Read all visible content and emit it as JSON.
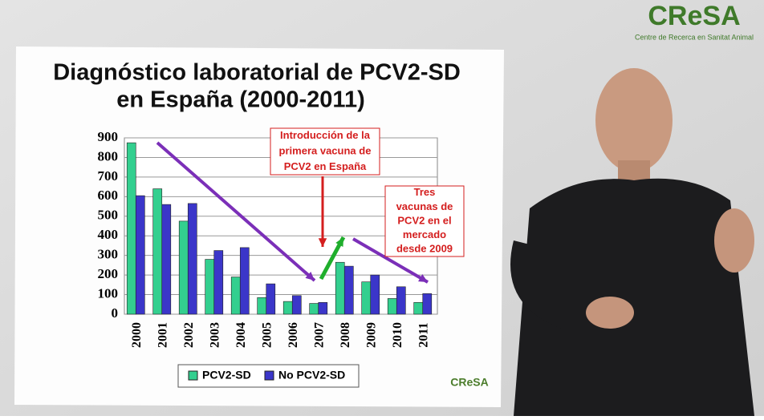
{
  "chart_data": {
    "type": "bar",
    "title": [
      "Diagnóstico laboratorial de PCV2-SD",
      "en España (2000-2011)"
    ],
    "categories": [
      "2000",
      "2001",
      "2002",
      "2003",
      "2004",
      "2005",
      "2006",
      "2007",
      "2008",
      "2009",
      "2010",
      "2011"
    ],
    "series": [
      {
        "name": "PCV2-SD",
        "color": "#33cf8f",
        "values": [
          875,
          640,
          475,
          280,
          190,
          85,
          65,
          55,
          265,
          165,
          80,
          60
        ]
      },
      {
        "name": "No PCV2-SD",
        "color": "#3b36c9",
        "values": [
          605,
          560,
          565,
          325,
          340,
          155,
          95,
          60,
          245,
          200,
          140,
          105
        ]
      }
    ],
    "ylim": [
      0,
      900
    ],
    "yticks": [
      0,
      100,
      200,
      300,
      400,
      500,
      600,
      700,
      800,
      900
    ],
    "grid": true,
    "annotations": [
      {
        "lines": [
          "Introducción de la",
          "primera vacuna de",
          "PCV2 en España"
        ]
      },
      {
        "lines": [
          "Tres",
          "vacunas de",
          "PCV2 en el",
          "mercado",
          "desde 2009"
        ]
      }
    ]
  },
  "logo": {
    "name": "CReSA",
    "subtitle": "Centre de Recerca en Sanitat Animal"
  },
  "slide_logo": "CReSA"
}
